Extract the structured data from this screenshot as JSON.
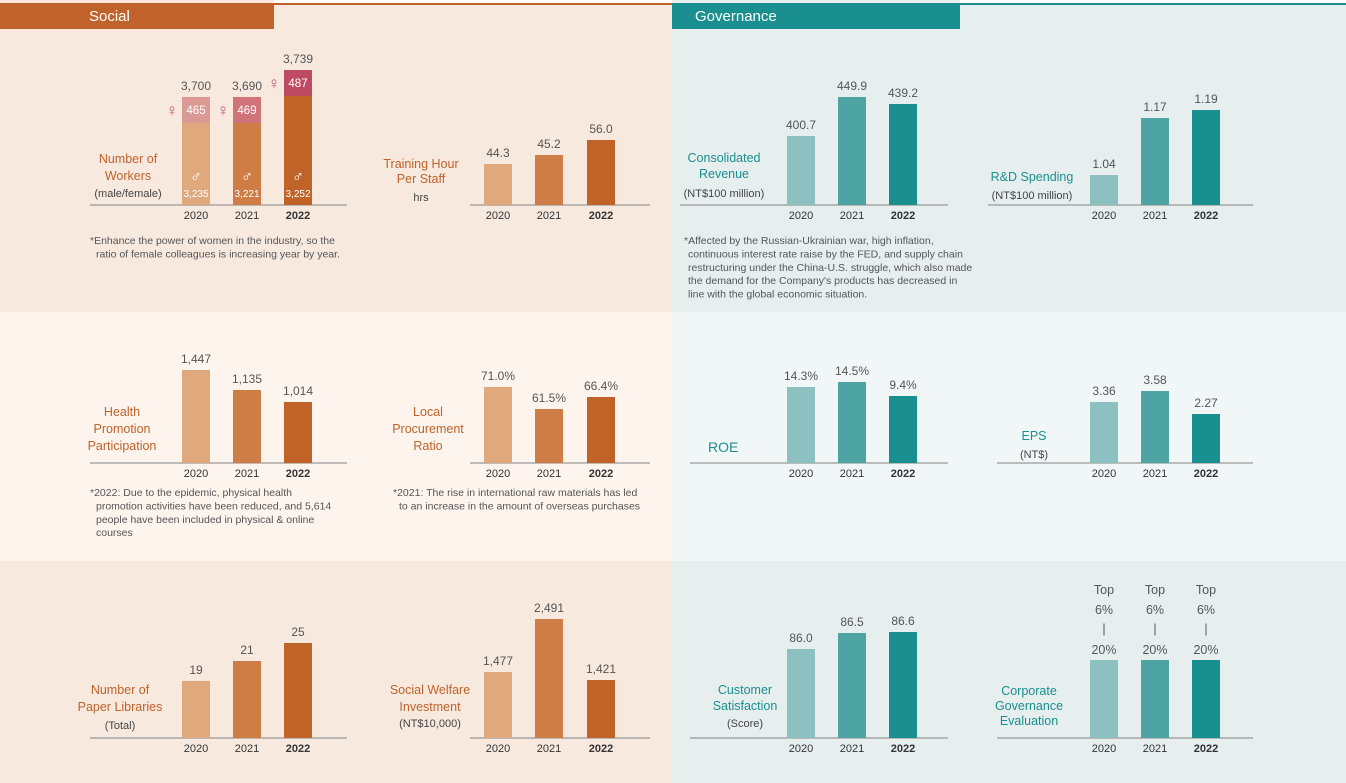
{
  "colors": {
    "social_header": "#c0622a",
    "gov_header": "#1a8f8f",
    "social_bg_dark": "#f8e9de",
    "social_bg_light": "#fdf4ee",
    "gov_bg_dark": "#e7eeee",
    "gov_bg_light": "#f1f6f6",
    "social_bars": [
      "#e0a87d",
      "#cf7d46",
      "#bf6328"
    ],
    "gov_bars": [
      "#8dc0c0",
      "#4ea3a3",
      "#1a8f8f"
    ],
    "female_fill": [
      "#dc9a94",
      "#d0737a",
      "#bf4a63"
    ],
    "social_label": "#c0622a",
    "gov_label": "#1a8f8f",
    "text_grey": "#555555",
    "axis": "#999999"
  },
  "sections": {
    "social": {
      "title": "Social"
    },
    "governance": {
      "title": "Governance"
    }
  },
  "chart_data": [
    {
      "id": "workers",
      "type": "bar",
      "title": "",
      "label_lines": [
        "Number of",
        "Workers"
      ],
      "sub_label": "(male/female)",
      "categories": [
        "2020",
        "2021",
        "2022"
      ],
      "values": [
        3700,
        3690,
        3739
      ],
      "value_labels": [
        "3,700",
        "3,690",
        "3,739"
      ],
      "series": [
        {
          "name": "male",
          "values": [
            3235,
            3221,
            3252
          ],
          "value_labels": [
            "3,235",
            "3,221",
            "3,252"
          ]
        },
        {
          "name": "female",
          "values": [
            465,
            469,
            487
          ],
          "value_labels": [
            "465",
            "469",
            "487"
          ]
        }
      ],
      "male_symbol": "♂",
      "female_symbol": "♀",
      "note_lines": [
        "*Enhance the power of women in the industry, so the",
        "ratio of female colleagues is increasing year by year."
      ]
    },
    {
      "id": "training",
      "type": "bar",
      "label_lines": [
        "Training Hour",
        "Per Staff"
      ],
      "sub_label": "hrs",
      "categories": [
        "2020",
        "2021",
        "2022"
      ],
      "values": [
        44.3,
        45.2,
        56.0
      ],
      "value_labels": [
        "44.3",
        "45.2",
        "56.0"
      ]
    },
    {
      "id": "health",
      "type": "bar",
      "label_lines": [
        "Health",
        "Promotion",
        "Participation"
      ],
      "sub_label": "",
      "categories": [
        "2020",
        "2021",
        "2022"
      ],
      "values": [
        1447,
        1135,
        1014
      ],
      "value_labels": [
        "1,447",
        "1,135",
        "1,014"
      ],
      "note_lines": [
        "*2022: Due to the epidemic, physical health",
        "promotion activities have been reduced, and 5,614",
        "people have been included in physical & online",
        "courses"
      ]
    },
    {
      "id": "local",
      "type": "bar",
      "label_lines": [
        "Local",
        "Procurement",
        "Ratio"
      ],
      "sub_label": "",
      "categories": [
        "2020",
        "2021",
        "2022"
      ],
      "values": [
        71.0,
        61.5,
        66.4
      ],
      "value_labels": [
        "71.0%",
        "61.5%",
        "66.4%"
      ],
      "note_lines": [
        "*2021: The rise in international raw materials has led",
        "to an increase in the amount of overseas purchases"
      ]
    },
    {
      "id": "libraries",
      "type": "bar",
      "label_lines": [
        "Number of",
        "Paper Libraries"
      ],
      "sub_label": "(Total)",
      "categories": [
        "2020",
        "2021",
        "2022"
      ],
      "values": [
        19,
        21,
        25
      ],
      "value_labels": [
        "19",
        "21",
        "25"
      ]
    },
    {
      "id": "welfare",
      "type": "bar",
      "label_lines": [
        "Social Welfare",
        "Investment"
      ],
      "sub_label": "(NT$10,000)",
      "categories": [
        "2020",
        "2021",
        "2022"
      ],
      "values": [
        1477,
        2491,
        1421
      ],
      "value_labels": [
        "1,477",
        "2,491",
        "1,421"
      ]
    },
    {
      "id": "revenue",
      "type": "bar",
      "label_lines": [
        "Consolidated",
        "Revenue"
      ],
      "sub_label": "(NT$100 million)",
      "categories": [
        "2020",
        "2021",
        "2022"
      ],
      "values": [
        400.7,
        449.9,
        439.2
      ],
      "value_labels": [
        "400.7",
        "449.9",
        "439.2"
      ],
      "note_lines": [
        "*Affected by the Russian-Ukrainian war, high inflation,",
        "continuous interest rate raise by the FED, and supply chain",
        "restructuring under the China-U.S. struggle, which also made",
        "the demand for the Company's products has decreased in",
        "line with the global economic situation."
      ]
    },
    {
      "id": "rd",
      "type": "bar",
      "label_lines": [
        "R&D Spending"
      ],
      "sub_label": "(NT$100 million)",
      "categories": [
        "2020",
        "2021",
        "2022"
      ],
      "values": [
        1.04,
        1.17,
        1.19
      ],
      "value_labels": [
        "1.04",
        "1.17",
        "1.19"
      ]
    },
    {
      "id": "roe",
      "type": "bar",
      "label_lines": [
        "ROE"
      ],
      "sub_label": "",
      "categories": [
        "2020",
        "2021",
        "2022"
      ],
      "values": [
        14.3,
        14.5,
        9.4
      ],
      "value_labels": [
        "14.3%",
        "14.5%",
        "9.4%"
      ]
    },
    {
      "id": "eps",
      "type": "bar",
      "label_lines": [
        "EPS"
      ],
      "sub_label": "(NT$)",
      "categories": [
        "2020",
        "2021",
        "2022"
      ],
      "values": [
        3.36,
        3.58,
        2.27
      ],
      "value_labels": [
        "3.36",
        "3.58",
        "2.27"
      ]
    },
    {
      "id": "satisfaction",
      "type": "bar",
      "label_lines": [
        "Customer",
        "Satisfaction"
      ],
      "sub_label": "(Score)",
      "categories": [
        "2020",
        "2021",
        "2022"
      ],
      "values": [
        86.0,
        86.5,
        86.6
      ],
      "value_labels": [
        "86.0",
        "86.5",
        "86.6"
      ]
    },
    {
      "id": "governance_eval",
      "type": "bar",
      "label_lines": [
        "Corporate",
        "Governance",
        "Evaluation"
      ],
      "sub_label": "",
      "categories": [
        "2020",
        "2021",
        "2022"
      ],
      "values": [
        "Top 6%-20%",
        "Top 6%-20%",
        "Top 6%-20%"
      ],
      "rank_lines": [
        [
          "Top",
          "6%",
          "|",
          "20%"
        ],
        [
          "Top",
          "6%",
          "|",
          "20%"
        ],
        [
          "Top",
          "6%",
          "|",
          "20%"
        ]
      ]
    }
  ]
}
